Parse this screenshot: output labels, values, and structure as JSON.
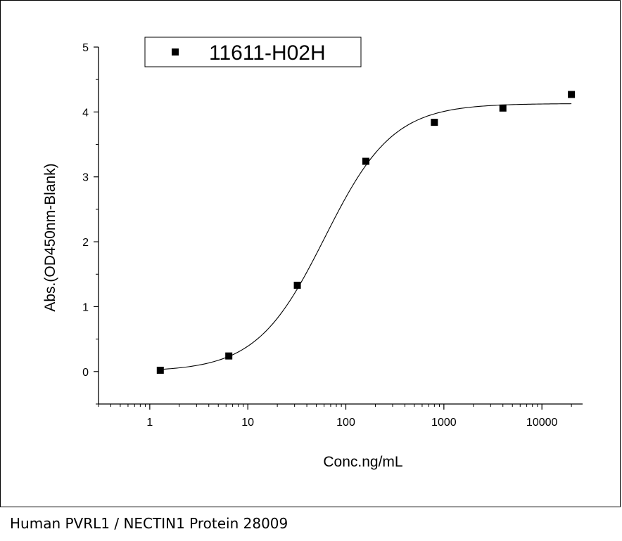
{
  "caption": "Human PVRL1 / NECTIN1 Protein 28009",
  "chart_data": {
    "type": "scatter",
    "title": "",
    "xlabel": "Conc.ng/mL",
    "ylabel": "Abs.(OD450nm-Blank)",
    "xscale": "log",
    "xlim": [
      0.3,
      26000
    ],
    "ylim": [
      -0.5,
      5
    ],
    "xticks": [
      1,
      10,
      100,
      1000,
      10000
    ],
    "xtick_labels": [
      "1",
      "10",
      "100",
      "1000",
      "10000"
    ],
    "yticks": [
      0,
      1,
      2,
      3,
      4,
      5
    ],
    "ytick_labels": [
      "0",
      "1",
      "2",
      "3",
      "4",
      "5"
    ],
    "grid": false,
    "legend_position": "top-left",
    "series": [
      {
        "name": "11611-H02H",
        "marker": "square",
        "color": "#000000",
        "x": [
          1.28,
          6.4,
          32,
          160,
          800,
          4000,
          20000
        ],
        "y": [
          0.02,
          0.24,
          1.33,
          3.24,
          3.84,
          4.06,
          4.27
        ]
      }
    ],
    "fit": {
      "type": "4PL sigmoid",
      "color": "#000000",
      "x_range": [
        1.28,
        20000
      ]
    }
  }
}
